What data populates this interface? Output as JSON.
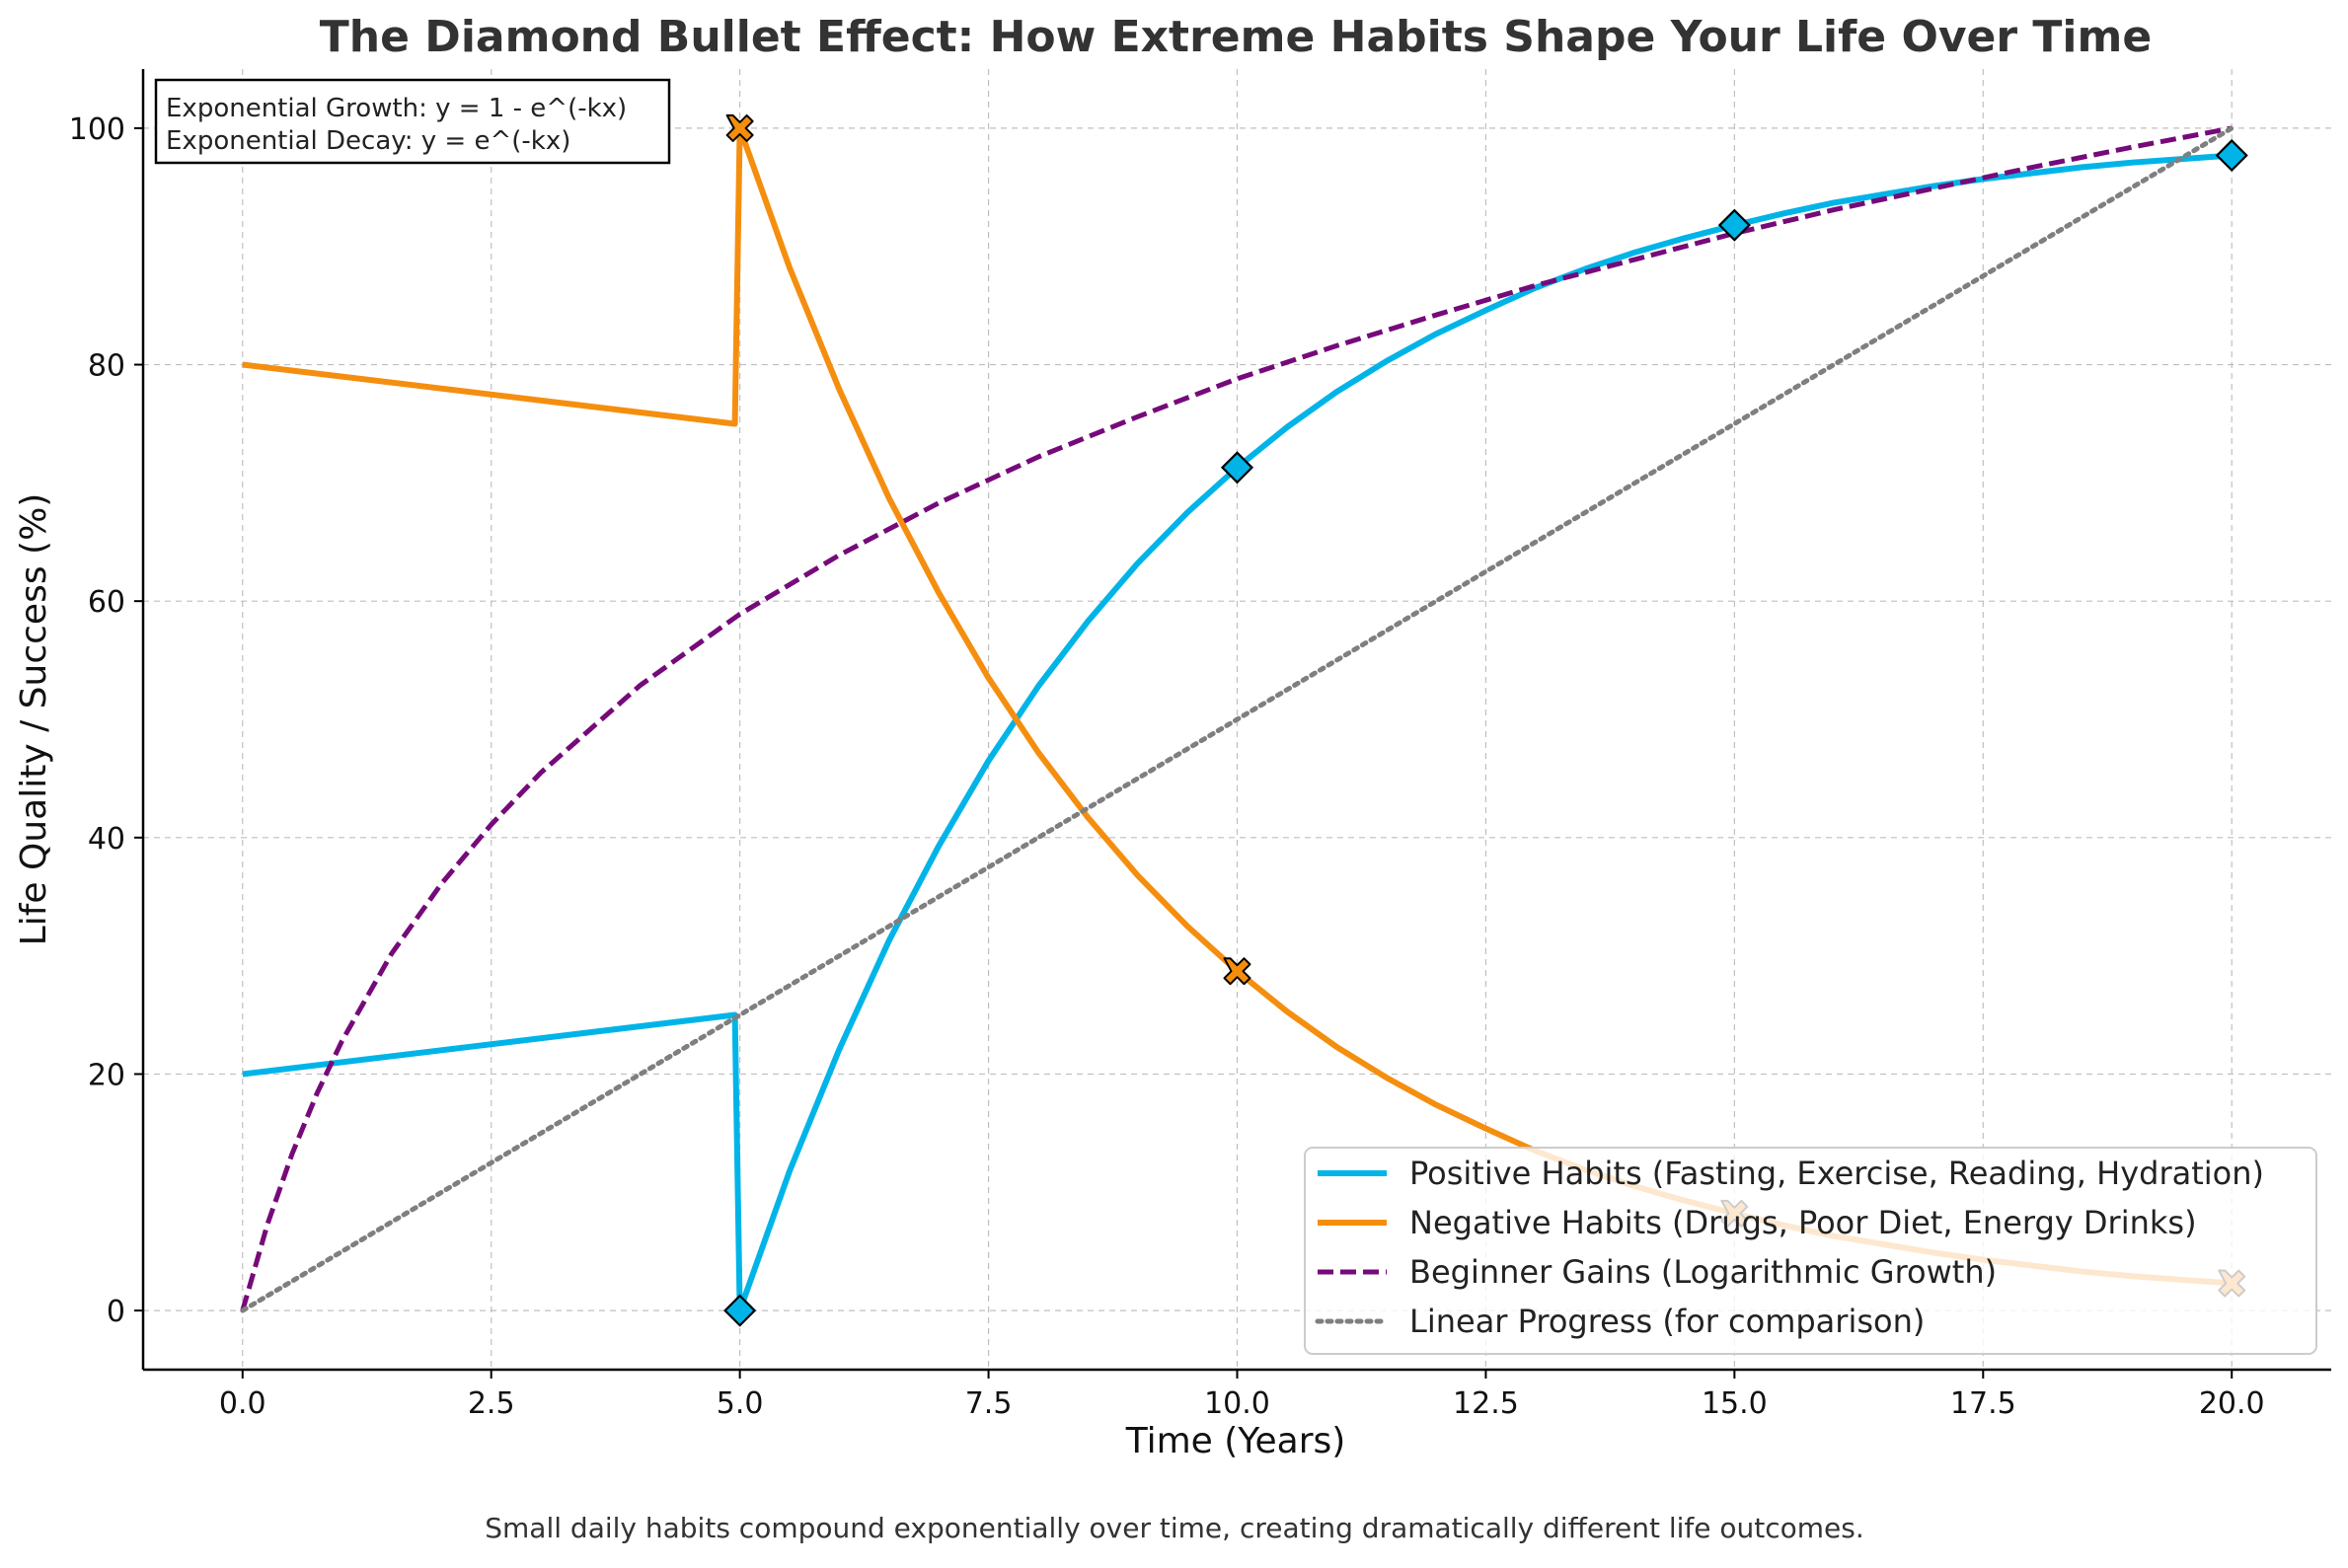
{
  "chart_data": {
    "type": "line",
    "title": "The Diamond Bullet Effect: How Extreme Habits Shape Your Life Over Time",
    "xlabel": "Time (Years)",
    "ylabel": "Life Quality / Success (%)",
    "caption": "Small daily habits compound exponentially over time, creating dramatically different life outcomes.",
    "annotation_lines": [
      "Exponential Growth: y = 1 - e^(-kx)",
      "Exponential Decay: y = e^(-kx)"
    ],
    "xlim": [
      -1,
      21
    ],
    "ylim": [
      -5,
      105
    ],
    "x_ticks": [
      0,
      2.5,
      5,
      7.5,
      10,
      12.5,
      15,
      17.5,
      20
    ],
    "x_tick_labels": [
      "0.0",
      "2.5",
      "5.0",
      "7.5",
      "10.0",
      "12.5",
      "15.0",
      "17.5",
      "20.0"
    ],
    "y_ticks": [
      0,
      20,
      40,
      60,
      80,
      100
    ],
    "y_tick_labels": [
      "0",
      "20",
      "40",
      "60",
      "80",
      "100"
    ],
    "grid": true,
    "legend_position": "bottom-right",
    "series": [
      {
        "name": "Positive Habits (Fasting, Exercise, Reading, Hydration)",
        "color": "#00b4e8",
        "style": "solid",
        "x": [
          0,
          4.95,
          5.0,
          5.5,
          6,
          6.5,
          7,
          7.5,
          8,
          8.5,
          9,
          9.5,
          10,
          10.5,
          11,
          11.5,
          12,
          12.5,
          13,
          13.5,
          14,
          14.5,
          15,
          15.5,
          16,
          16.5,
          17,
          17.5,
          18,
          18.5,
          19,
          19.5,
          20
        ],
        "y": [
          20,
          25,
          0,
          11.8,
          22.1,
          31.3,
          39.3,
          46.5,
          52.8,
          58.3,
          63.2,
          67.5,
          71.3,
          74.7,
          77.7,
          80.3,
          82.6,
          84.6,
          86.5,
          88.1,
          89.5,
          90.7,
          91.8,
          92.8,
          93.7,
          94.4,
          95.1,
          95.7,
          96.2,
          96.7,
          97.1,
          97.4,
          97.7
        ],
        "markers": {
          "shape": "diamond",
          "x": [
            5,
            10,
            15,
            20
          ],
          "y": [
            0,
            71.3,
            91.8,
            97.7
          ]
        }
      },
      {
        "name": "Negative Habits (Drugs, Poor Diet, Energy Drinks)",
        "color": "#f58e0f",
        "style": "solid",
        "x": [
          0,
          4.95,
          5.0,
          5.5,
          6,
          6.5,
          7,
          7.5,
          8,
          8.5,
          9,
          9.5,
          10,
          10.5,
          11,
          11.5,
          12,
          12.5,
          13,
          13.5,
          14,
          14.5,
          15,
          15.5,
          16,
          16.5,
          17,
          17.5,
          18,
          18.5,
          19,
          19.5,
          20
        ],
        "y": [
          80,
          75,
          100,
          88.2,
          77.9,
          68.7,
          60.7,
          53.5,
          47.2,
          41.7,
          36.8,
          32.5,
          28.7,
          25.3,
          22.3,
          19.7,
          17.4,
          15.4,
          13.5,
          11.9,
          10.5,
          9.3,
          8.2,
          7.2,
          6.3,
          5.6,
          4.9,
          4.3,
          3.8,
          3.3,
          2.9,
          2.6,
          2.3
        ],
        "markers": {
          "shape": "x-filled",
          "x": [
            5,
            10,
            15,
            20
          ],
          "y": [
            100,
            28.7,
            8.2,
            2.3
          ]
        }
      },
      {
        "name": "Beginner Gains (Logarithmic Growth)",
        "color": "#760a7a",
        "style": "dashed",
        "x": [
          0,
          0.25,
          0.5,
          0.75,
          1,
          1.5,
          2,
          2.5,
          3,
          4,
          5,
          6,
          7,
          8,
          9,
          10,
          11,
          12,
          13,
          14,
          15,
          16,
          17,
          18,
          19,
          20
        ],
        "y": [
          0,
          7.3,
          13.3,
          18.4,
          22.8,
          30.2,
          36.1,
          41.1,
          45.5,
          52.9,
          58.9,
          63.9,
          68.3,
          72.2,
          75.6,
          78.8,
          81.6,
          84.2,
          86.7,
          88.9,
          91.1,
          93.1,
          94.9,
          96.7,
          98.4,
          100
        ]
      },
      {
        "name": "Linear Progress (for comparison)",
        "color": "#7f7f7f",
        "style": "dotted",
        "x": [
          0,
          20
        ],
        "y": [
          0,
          100
        ]
      }
    ]
  }
}
